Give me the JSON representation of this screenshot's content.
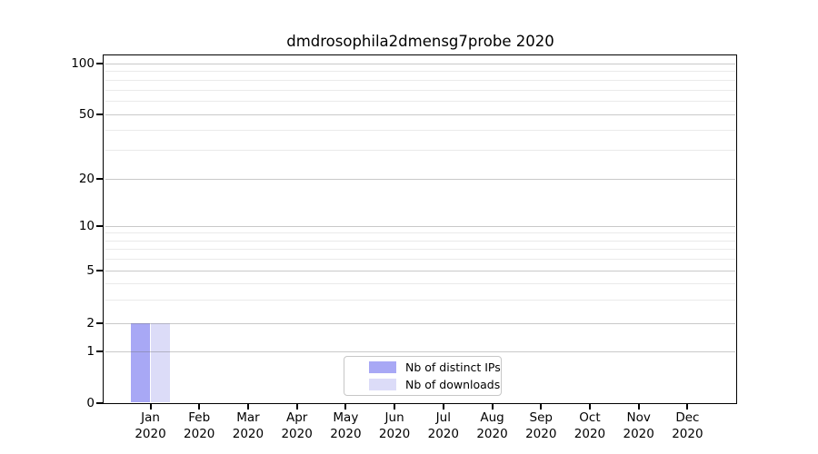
{
  "chart_data": {
    "type": "bar",
    "title": "dmdrosophila2dmensg7probe 2020",
    "categories": [
      "Jan",
      "Feb",
      "Mar",
      "Apr",
      "May",
      "Jun",
      "Jul",
      "Aug",
      "Sep",
      "Oct",
      "Nov",
      "Dec"
    ],
    "category_year": "2020",
    "series": [
      {
        "name": "Nb of distinct IPs",
        "color": "#a8a8f5",
        "values": [
          2,
          0,
          0,
          0,
          0,
          0,
          0,
          0,
          0,
          0,
          0,
          0
        ]
      },
      {
        "name": "Nb of downloads",
        "color": "#dcdcf8",
        "values": [
          2,
          0,
          0,
          0,
          0,
          0,
          0,
          0,
          0,
          0,
          0,
          0
        ]
      }
    ],
    "y_axis": {
      "scale": "log-like",
      "range": [
        0,
        100
      ],
      "major_ticks": [
        0,
        1,
        2,
        5,
        10,
        20,
        50,
        100
      ],
      "minor_gridlines": [
        3,
        4,
        6,
        7,
        8,
        9,
        30,
        40,
        60,
        70,
        80,
        90
      ]
    },
    "x_axis": {
      "label_format": "month over year"
    },
    "legend": {
      "position": "lower center"
    },
    "grid": true
  }
}
